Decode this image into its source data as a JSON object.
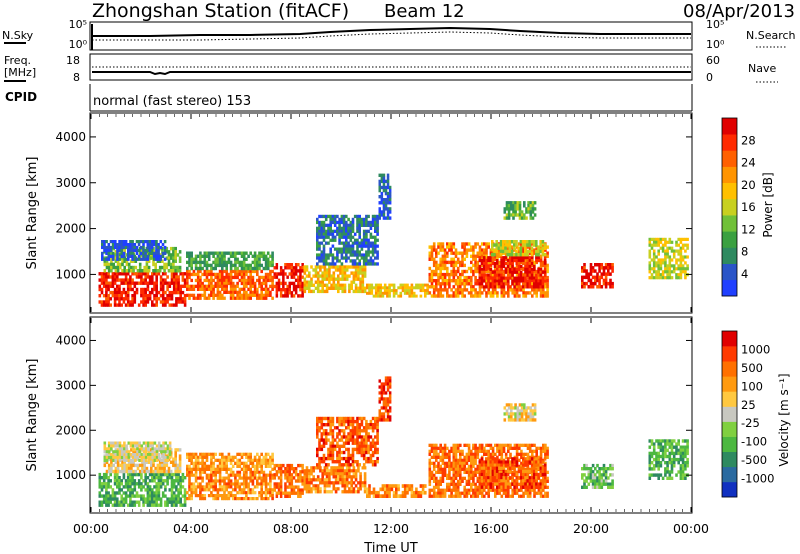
{
  "header": {
    "station": "Zhongshan Station (fitACF)",
    "beam": "Beam 12",
    "date": "08/Apr/2013"
  },
  "noise_panel": {
    "left_label": "N.Sky",
    "left_ticks": [
      "10^5",
      "10^0"
    ],
    "right_ticks": [
      "10^5",
      "10^0"
    ],
    "right_label": "N.Search"
  },
  "freq_panel": {
    "left_label_1": "Freq.",
    "left_label_2": "[MHz]",
    "left_ticks": [
      "18",
      "8"
    ],
    "right_ticks": [
      "60",
      "0"
    ],
    "right_label": "Nave"
  },
  "cpid": {
    "label": "CPID",
    "mode": "normal (fast stereo) 153"
  },
  "chart_data": [
    {
      "type": "heatmap",
      "name": "power",
      "ylabel": "Slant Range [km]",
      "xlabel": "",
      "ylim": [
        180,
        4500
      ],
      "xlim": [
        0,
        24
      ],
      "yticks": [
        1000,
        2000,
        3000,
        4000
      ],
      "colorbar": {
        "label": "Power [dB]",
        "ticks": [
          "28",
          "24",
          "20",
          "16",
          "12",
          "8",
          "4"
        ],
        "colors": [
          "#2040ff",
          "#2a55c8",
          "#2e8a60",
          "#3aa040",
          "#70c038",
          "#c8d020",
          "#ffc000",
          "#ff9400",
          "#ff6000",
          "#ff2a00",
          "#e00000"
        ]
      },
      "patches": [
        {
          "t0": 0.3,
          "t1": 3.8,
          "r0": 300,
          "r1": 1050,
          "level": 9.5
        },
        {
          "t0": 0.5,
          "t1": 3.6,
          "r0": 1050,
          "r1": 1600,
          "level": 4
        },
        {
          "t0": 0.4,
          "t1": 3.0,
          "r0": 1300,
          "r1": 1750,
          "level": 1
        },
        {
          "t0": 3.8,
          "t1": 7.3,
          "r0": 450,
          "r1": 1100,
          "level": 8
        },
        {
          "t0": 3.8,
          "t1": 7.3,
          "r0": 1100,
          "r1": 1500,
          "level": 3
        },
        {
          "t0": 7.3,
          "t1": 8.5,
          "r0": 500,
          "r1": 1250,
          "level": 9.5
        },
        {
          "t0": 8.5,
          "t1": 11.0,
          "r0": 600,
          "r1": 1200,
          "level": 6
        },
        {
          "t0": 9.0,
          "t1": 11.5,
          "r0": 1200,
          "r1": 2300,
          "level": 1.5
        },
        {
          "t0": 11.0,
          "t1": 13.5,
          "r0": 500,
          "r1": 800,
          "level": 6
        },
        {
          "t0": 13.5,
          "t1": 18.3,
          "r0": 500,
          "r1": 1700,
          "level": 7.5
        },
        {
          "t0": 15.5,
          "t1": 18.2,
          "r0": 700,
          "r1": 1400,
          "level": 9.5
        },
        {
          "t0": 16.0,
          "t1": 18.2,
          "r0": 1400,
          "r1": 1750,
          "level": 5
        },
        {
          "t0": 16.5,
          "t1": 17.8,
          "r0": 2200,
          "r1": 2600,
          "level": 3.5
        },
        {
          "t0": 19.6,
          "t1": 20.9,
          "r0": 700,
          "r1": 1250,
          "level": 9.5
        },
        {
          "t0": 22.3,
          "t1": 23.9,
          "r0": 900,
          "r1": 1800,
          "level": 5
        },
        {
          "t0": 11.5,
          "t1": 12.0,
          "r0": 2200,
          "r1": 3200,
          "level": 1
        }
      ]
    },
    {
      "type": "heatmap",
      "name": "velocity",
      "ylabel": "Slant Range [km]",
      "xlabel": "Time UT",
      "ylim": [
        180,
        4500
      ],
      "xlim": [
        0,
        24
      ],
      "yticks": [
        1000,
        2000,
        3000,
        4000
      ],
      "xticks": [
        "00:00",
        "04:00",
        "08:00",
        "12:00",
        "16:00",
        "20:00",
        "00:00"
      ],
      "colorbar": {
        "label": "Velocity [m s^-1]",
        "ticks": [
          "1000",
          "500",
          "100",
          "25",
          "-25",
          "-100",
          "-500",
          "-1000"
        ],
        "colors": [
          "#1030c0",
          "#2a6aa0",
          "#2e8a60",
          "#4cb840",
          "#80d040",
          "#c8c8c0",
          "#ffc840",
          "#ff9a10",
          "#ff7000",
          "#ff3a00",
          "#e00000"
        ]
      },
      "patches": [
        {
          "t0": 0.3,
          "t1": 3.8,
          "r0": 300,
          "r1": 1050,
          "level": 3
        },
        {
          "t0": 0.5,
          "t1": 3.6,
          "r0": 1050,
          "r1": 1600,
          "level": 6
        },
        {
          "t0": 0.5,
          "t1": 3.2,
          "r0": 1300,
          "r1": 1750,
          "level": 5
        },
        {
          "t0": 3.8,
          "t1": 7.3,
          "r0": 450,
          "r1": 1100,
          "level": 7.5
        },
        {
          "t0": 3.8,
          "t1": 7.3,
          "r0": 1100,
          "r1": 1500,
          "level": 7
        },
        {
          "t0": 7.3,
          "t1": 8.5,
          "r0": 500,
          "r1": 1250,
          "level": 8
        },
        {
          "t0": 8.5,
          "t1": 11.0,
          "r0": 600,
          "r1": 1200,
          "level": 7.5
        },
        {
          "t0": 9.0,
          "t1": 11.5,
          "r0": 1200,
          "r1": 2300,
          "level": 8.5
        },
        {
          "t0": 11.0,
          "t1": 13.5,
          "r0": 500,
          "r1": 800,
          "level": 7.5
        },
        {
          "t0": 13.5,
          "t1": 18.3,
          "r0": 500,
          "r1": 1700,
          "level": 8
        },
        {
          "t0": 15.5,
          "t1": 18.2,
          "r0": 700,
          "r1": 1400,
          "level": 8.5
        },
        {
          "t0": 16.5,
          "t1": 17.8,
          "r0": 2200,
          "r1": 2600,
          "level": 5.5
        },
        {
          "t0": 19.6,
          "t1": 20.9,
          "r0": 700,
          "r1": 1250,
          "level": 3.5
        },
        {
          "t0": 22.3,
          "t1": 23.9,
          "r0": 900,
          "r1": 1800,
          "level": 3
        },
        {
          "t0": 11.5,
          "t1": 12.0,
          "r0": 2200,
          "r1": 3200,
          "level": 9
        }
      ]
    }
  ]
}
